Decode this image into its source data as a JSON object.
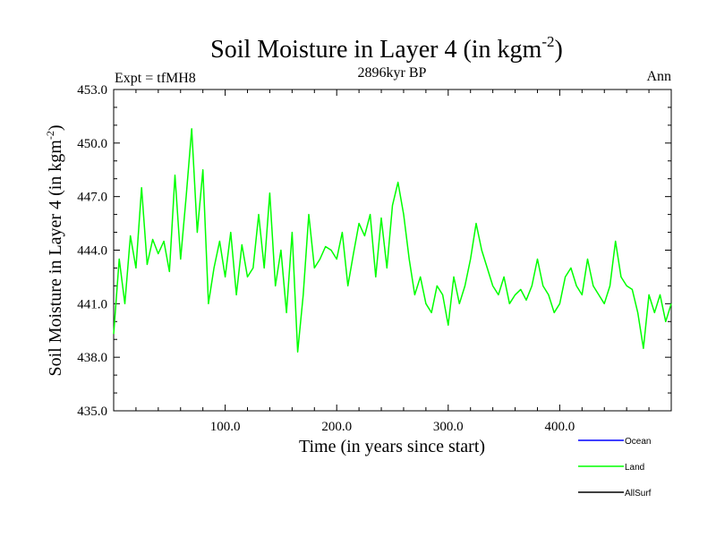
{
  "chart_data": {
    "type": "line",
    "title_main": "Soil Moisture in Layer 4 (in kgm",
    "title_sup": "-2",
    "title_close": ")",
    "subtitle": "2896kyr BP",
    "left_label": "Expt = tfMH8",
    "right_label": "Ann",
    "xlabel": "Time (in years since start)",
    "ylabel_main": "Soil Moisture in Layer 4 (in kgm",
    "ylabel_sup": "-2",
    "ylabel_close": ")",
    "xlim": [
      0,
      500
    ],
    "ylim": [
      435.0,
      453.0
    ],
    "xticks": [
      100,
      200,
      300,
      400
    ],
    "xtick_labels": [
      "100.0",
      "200.0",
      "300.0",
      "400.0"
    ],
    "yticks": [
      435,
      438,
      441,
      444,
      447,
      450,
      453
    ],
    "ytick_labels": [
      "435.0",
      "438.0",
      "441.0",
      "444.0",
      "447.0",
      "450.0",
      "453.0"
    ],
    "legend": [
      {
        "name": "Ocean",
        "color": "#0000ff"
      },
      {
        "name": "Land",
        "color": "#00ff00"
      },
      {
        "name": "AllSurf",
        "color": "#000000"
      }
    ],
    "series": [
      {
        "name": "Land",
        "color": "#00ff00",
        "x": [
          0,
          5,
          10,
          15,
          20,
          25,
          30,
          35,
          40,
          45,
          50,
          55,
          60,
          65,
          70,
          75,
          80,
          85,
          90,
          95,
          100,
          105,
          110,
          115,
          120,
          125,
          130,
          135,
          140,
          145,
          150,
          155,
          160,
          165,
          170,
          175,
          180,
          185,
          190,
          195,
          200,
          205,
          210,
          215,
          220,
          225,
          230,
          235,
          240,
          245,
          250,
          255,
          260,
          265,
          270,
          275,
          280,
          285,
          290,
          295,
          300,
          305,
          310,
          315,
          320,
          325,
          330,
          335,
          340,
          345,
          350,
          355,
          360,
          365,
          370,
          375,
          380,
          385,
          390,
          395,
          400,
          405,
          410,
          415,
          420,
          425,
          430,
          435,
          440,
          445,
          450,
          455,
          460,
          465,
          470,
          475,
          480,
          485,
          490,
          495,
          500
        ],
        "values": [
          439.3,
          443.5,
          441.0,
          444.8,
          443.0,
          447.5,
          443.2,
          444.6,
          443.8,
          444.5,
          442.8,
          448.2,
          443.5,
          447.0,
          450.8,
          445.0,
          448.5,
          441.0,
          443.0,
          444.5,
          442.5,
          445.0,
          441.5,
          444.3,
          442.5,
          443.0,
          446.0,
          443.0,
          447.2,
          442.0,
          444.0,
          440.5,
          445.0,
          438.3,
          441.5,
          446.0,
          443.0,
          443.5,
          444.2,
          444.0,
          443.5,
          445.0,
          442.0,
          443.8,
          445.5,
          444.8,
          446.0,
          442.5,
          445.8,
          443.0,
          446.5,
          447.8,
          446.0,
          443.5,
          441.5,
          442.5,
          441.0,
          440.5,
          442.0,
          441.5,
          439.8,
          442.5,
          441.0,
          442.0,
          443.5,
          445.5,
          444.0,
          443.0,
          442.0,
          441.5,
          442.5,
          441.0,
          441.5,
          441.8,
          441.2,
          442.0,
          443.5,
          442.0,
          441.5,
          440.5,
          441.0,
          442.5,
          443.0,
          442.0,
          441.5,
          443.5,
          442.0,
          441.5,
          441.0,
          442.0,
          444.5,
          442.5,
          442.0,
          441.8,
          440.5,
          438.5,
          441.5,
          440.5,
          441.5,
          440.0,
          441.0
        ]
      }
    ]
  }
}
